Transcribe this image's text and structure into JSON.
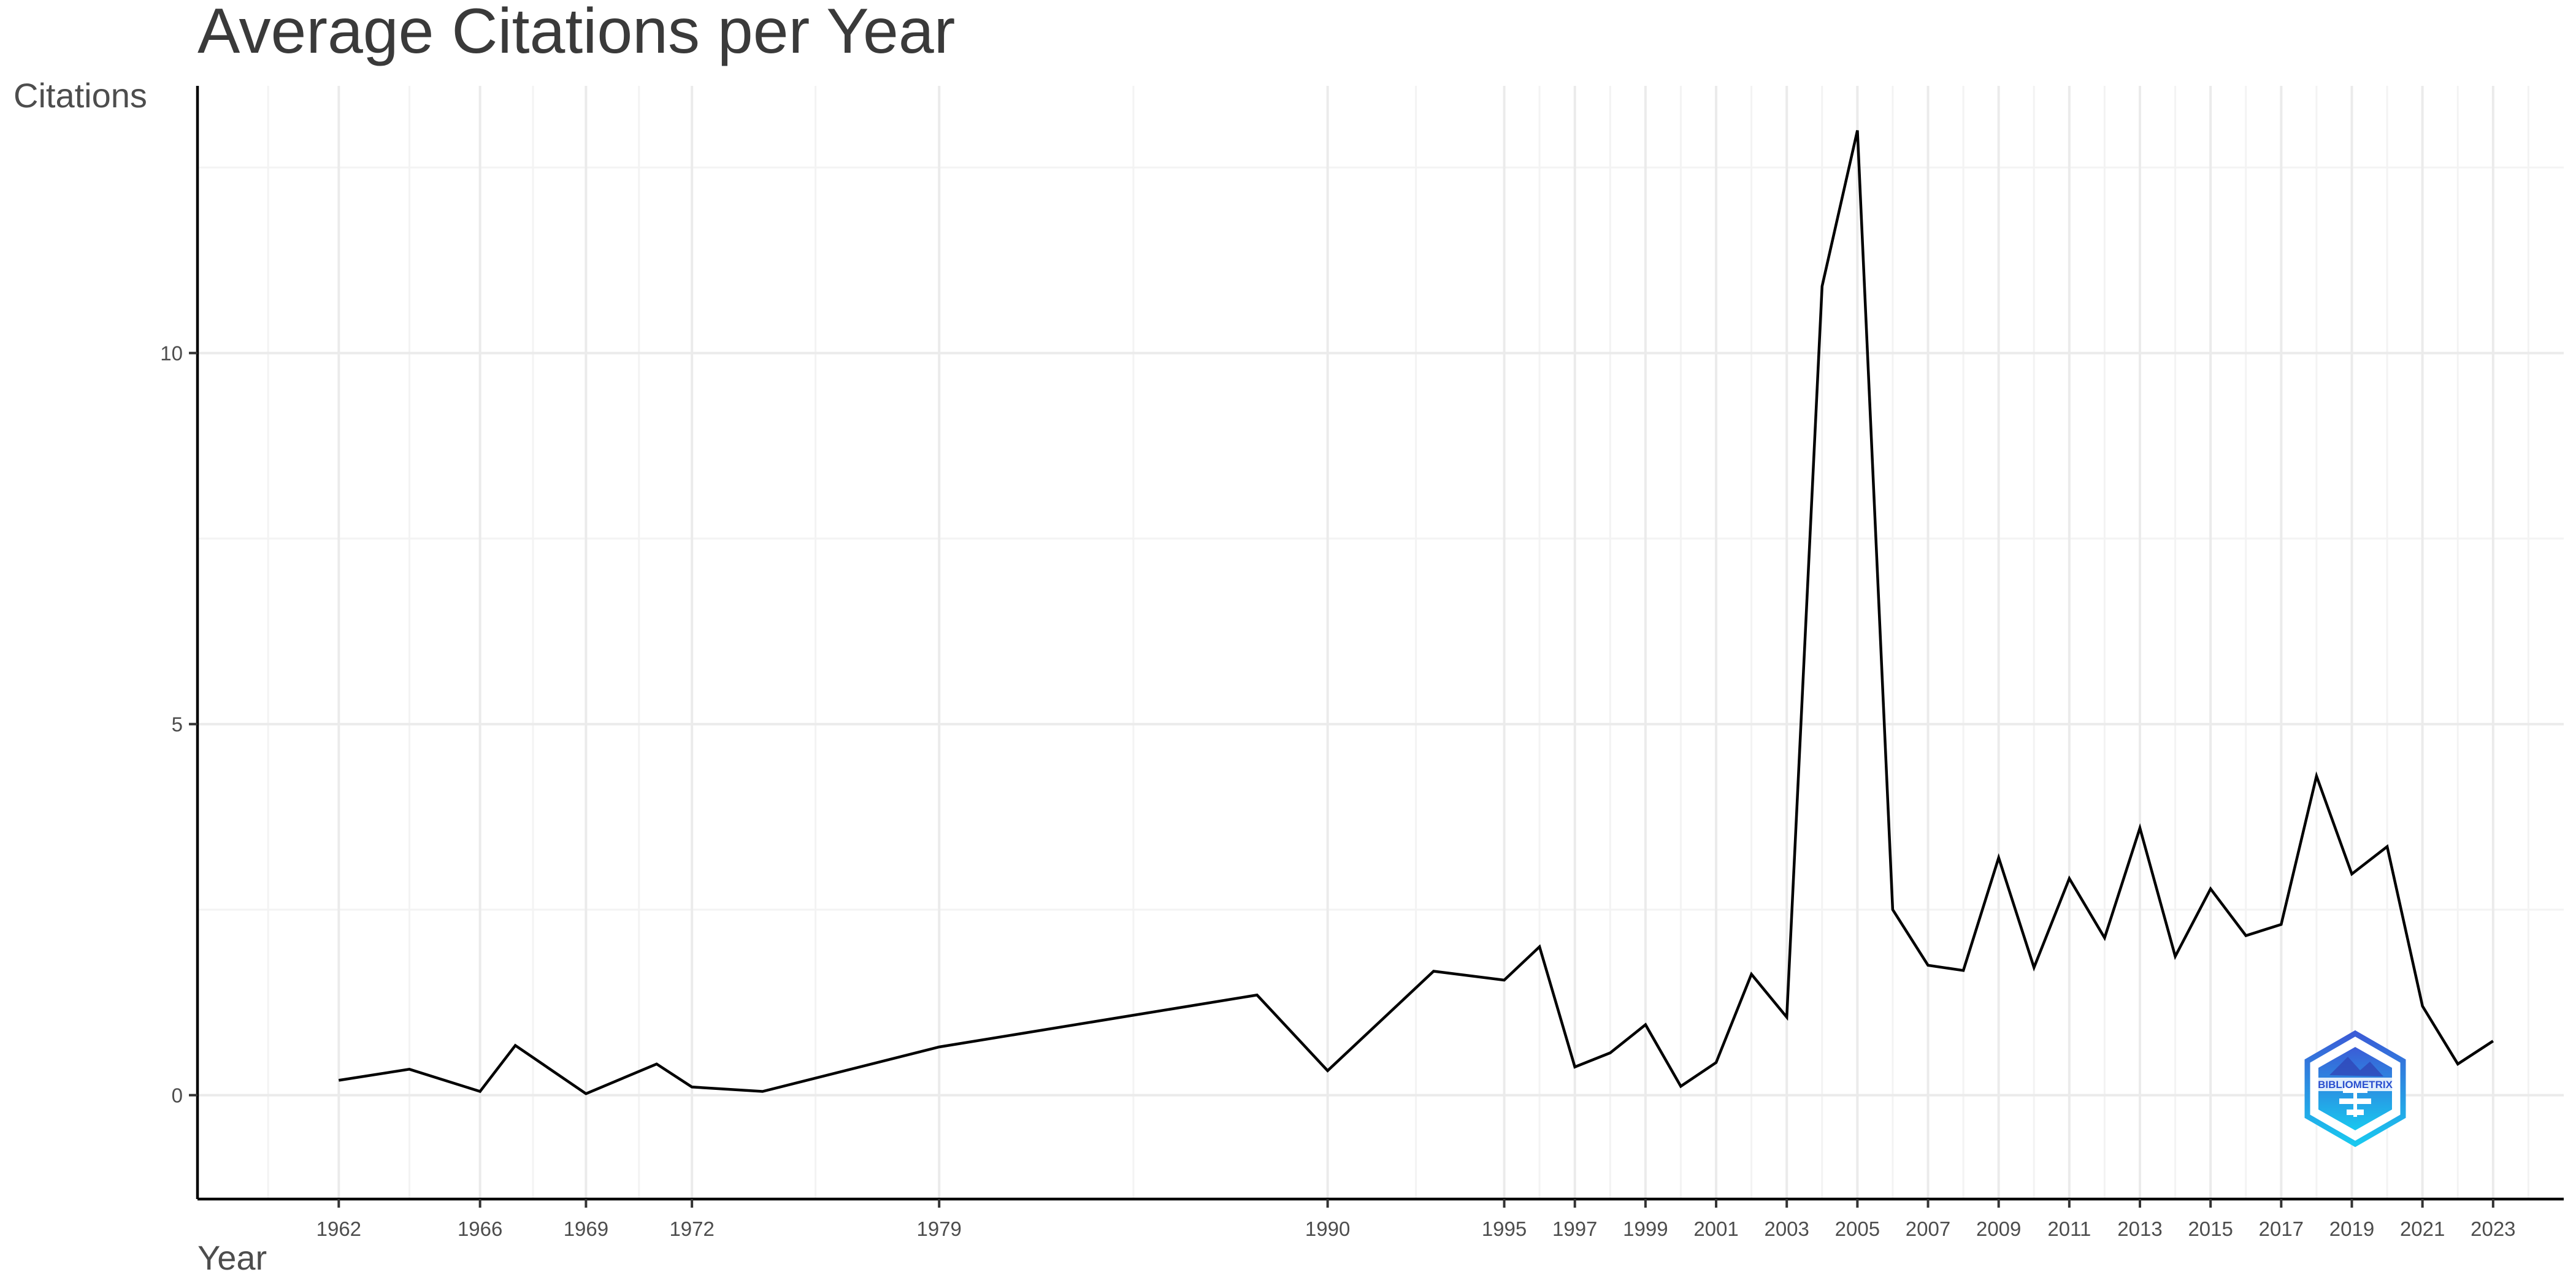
{
  "chart_data": {
    "type": "line",
    "title": "Average Citations per Year",
    "xlabel": "Year",
    "ylabel": "Citations",
    "xlim": [
      1958,
      2025
    ],
    "ylim": [
      -1.4,
      13.6
    ],
    "x_ticks": [
      1962,
      1966,
      1969,
      1972,
      1979,
      1990,
      1995,
      1997,
      1999,
      2001,
      2003,
      2005,
      2007,
      2009,
      2011,
      2013,
      2015,
      2017,
      2019,
      2021,
      2023
    ],
    "y_ticks": [
      0,
      5,
      10
    ],
    "grid": true,
    "series": [
      {
        "color": "#000000",
        "x": [
          1962,
          1964,
          1966,
          1967,
          1969,
          1971,
          1972,
          1974,
          1979,
          1988,
          1990,
          1993,
          1995,
          1996,
          1997,
          1998,
          1999,
          2000,
          2001,
          2002,
          2003,
          2004,
          2005,
          2006,
          2007,
          2008,
          2009,
          2010,
          2011,
          2012,
          2013,
          2014,
          2015,
          2016,
          2017,
          2018,
          2019,
          2020,
          2021,
          2022,
          2023
        ],
        "y": [
          0.2,
          0.35,
          0.05,
          0.67,
          0.02,
          0.42,
          0.11,
          0.05,
          0.65,
          1.35,
          0.33,
          1.67,
          1.55,
          2.0,
          0.38,
          0.57,
          0.95,
          0.12,
          0.44,
          1.63,
          1.05,
          10.9,
          13.0,
          2.5,
          1.75,
          1.68,
          3.2,
          1.72,
          2.92,
          2.12,
          3.6,
          1.87,
          2.78,
          2.15,
          2.3,
          4.3,
          2.98,
          3.35,
          1.2,
          0.42,
          0.73
        ]
      }
    ]
  },
  "logo": {
    "text": "BIBLIOMETRIX"
  }
}
